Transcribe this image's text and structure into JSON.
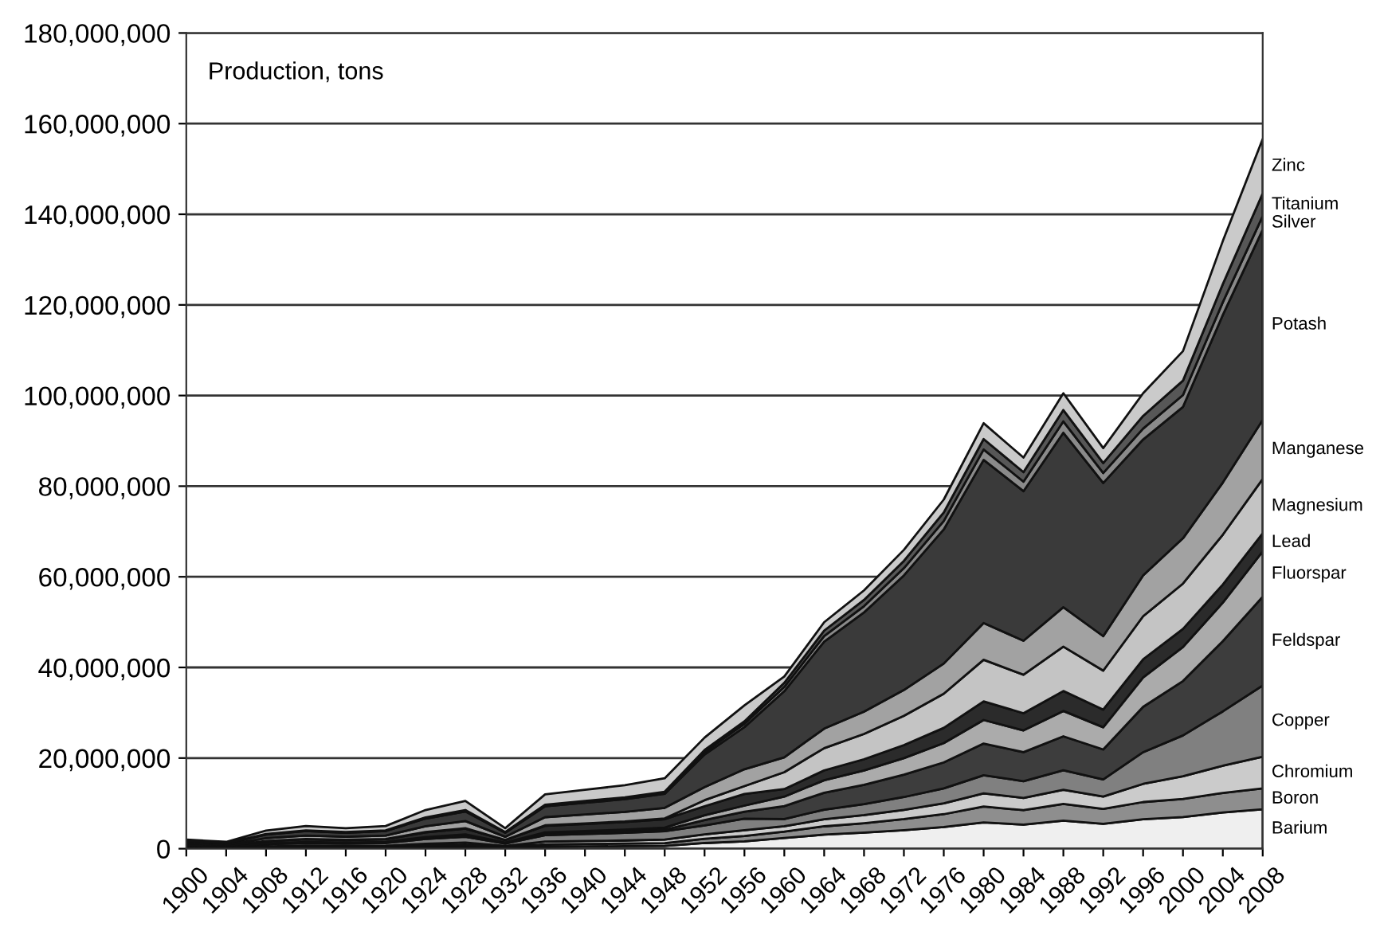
{
  "chart_data": {
    "type": "area",
    "stacked": true,
    "annotations": [
      "Production, tons"
    ],
    "x": [
      1900,
      1904,
      1908,
      1912,
      1916,
      1920,
      1924,
      1928,
      1932,
      1936,
      1940,
      1944,
      1948,
      1952,
      1956,
      1960,
      1964,
      1968,
      1972,
      1976,
      1980,
      1984,
      1988,
      1992,
      1996,
      2000,
      2004,
      2008
    ],
    "series": [
      {
        "name": "Barium",
        "color": "#efefef",
        "values": [
          80000,
          60000,
          160000,
          200000,
          180000,
          200000,
          340000,
          420000,
          180000,
          480000,
          520000,
          560000,
          620000,
          1250000,
          1610000,
          2360000,
          3100000,
          3540000,
          4100000,
          4780000,
          5800000,
          5300000,
          6200000,
          5500000,
          6500000,
          7000000,
          8000000,
          8700000
        ]
      },
      {
        "name": "Boron",
        "color": "#8e8e8e",
        "values": [
          80000,
          60000,
          160000,
          200000,
          180000,
          200000,
          340000,
          420000,
          180000,
          480000,
          520000,
          560000,
          620000,
          940000,
          1210000,
          1400000,
          1840000,
          2100000,
          2430000,
          2840000,
          3500000,
          3200000,
          3700000,
          3300000,
          3800000,
          4000000,
          4300000,
          4600000
        ]
      },
      {
        "name": "Chromium",
        "color": "#cbcbcb",
        "values": [
          100000,
          80000,
          200000,
          250000,
          230000,
          250000,
          430000,
          530000,
          230000,
          600000,
          650000,
          700000,
          780000,
          980000,
          1270000,
          1180000,
          1550000,
          1770000,
          2050000,
          2390000,
          2900000,
          2700000,
          3100000,
          2700000,
          4000000,
          5000000,
          6000000,
          7000000
        ]
      },
      {
        "name": "Copper",
        "color": "#808080",
        "values": [
          240000,
          180000,
          480000,
          600000,
          540000,
          600000,
          1020000,
          1260000,
          540000,
          1440000,
          1560000,
          1680000,
          1860000,
          1970000,
          2540000,
          1620000,
          2130000,
          2430000,
          2820000,
          3290000,
          4000000,
          3700000,
          4300000,
          3800000,
          7000000,
          9000000,
          12000000,
          15700000
        ]
      },
      {
        "name": "Feldspar",
        "color": "#3d3d3d",
        "values": [
          40000,
          30000,
          80000,
          100000,
          90000,
          100000,
          170000,
          210000,
          90000,
          240000,
          260000,
          280000,
          310000,
          1180000,
          1520000,
          2840000,
          3730000,
          4260000,
          4930000,
          5750000,
          7000000,
          6400000,
          7500000,
          6600000,
          10000000,
          12000000,
          15500000,
          19600000
        ]
      },
      {
        "name": "Fluorspar",
        "color": "#ababab",
        "values": [
          60000,
          50000,
          120000,
          150000,
          140000,
          150000,
          260000,
          320000,
          140000,
          360000,
          390000,
          420000,
          470000,
          1060000,
          1360000,
          2100000,
          2760000,
          3150000,
          3650000,
          4260000,
          5200000,
          4800000,
          5600000,
          4900000,
          6500000,
          7500000,
          8500000,
          10000000
        ]
      },
      {
        "name": "Lead",
        "color": "#2b2b2b",
        "values": [
          240000,
          180000,
          480000,
          600000,
          540000,
          600000,
          1020000,
          1260000,
          540000,
          1440000,
          1560000,
          1680000,
          1860000,
          1990000,
          2570000,
          1660000,
          2180000,
          2490000,
          2880000,
          3360000,
          4100000,
          3800000,
          4400000,
          3900000,
          4000000,
          4000000,
          4000000,
          4000000
        ]
      },
      {
        "name": "Magnesium",
        "color": "#c4c4c4",
        "values": [
          20000,
          20000,
          40000,
          50000,
          50000,
          50000,
          90000,
          110000,
          50000,
          120000,
          130000,
          140000,
          160000,
          1340000,
          1740000,
          3730000,
          4900000,
          5590000,
          6460000,
          7540000,
          9200000,
          8500000,
          9800000,
          8600000,
          9500000,
          10000000,
          11000000,
          12000000
        ]
      },
      {
        "name": "Manganese",
        "color": "#a2a2a2",
        "values": [
          300000,
          220000,
          600000,
          750000,
          680000,
          750000,
          1280000,
          1580000,
          680000,
          1800000,
          1950000,
          2100000,
          2330000,
          2880000,
          3720000,
          3280000,
          4320000,
          4920000,
          5700000,
          6650000,
          8100000,
          7500000,
          8700000,
          7600000,
          9000000,
          10000000,
          11500000,
          13000000
        ]
      },
      {
        "name": "Potash",
        "color": "#3a3a3a",
        "values": [
          400000,
          300000,
          800000,
          1000000,
          900000,
          1000000,
          1700000,
          2100000,
          900000,
          2400000,
          2600000,
          2800000,
          3100000,
          7200000,
          9300000,
          14600000,
          19200000,
          21900000,
          25300000,
          29600000,
          36000000,
          33000000,
          38500000,
          33800000,
          30000000,
          29000000,
          37000000,
          42000000
        ]
      },
      {
        "name": "Silver",
        "color": "#8a8a8a",
        "values": [
          40000,
          30000,
          80000,
          100000,
          90000,
          100000,
          170000,
          210000,
          90000,
          240000,
          260000,
          280000,
          310000,
          550000,
          710000,
          920000,
          1210000,
          1380000,
          1600000,
          1870000,
          2300000,
          2100000,
          2500000,
          2200000,
          2400000,
          2600000,
          2800000,
          3000000
        ]
      },
      {
        "name": "Titanium",
        "color": "#575757",
        "values": [
          20000,
          20000,
          40000,
          50000,
          50000,
          50000,
          90000,
          110000,
          50000,
          120000,
          130000,
          140000,
          160000,
          430000,
          560000,
          920000,
          1210000,
          1380000,
          1600000,
          1870000,
          2300000,
          2100000,
          2500000,
          2200000,
          2800000,
          3200000,
          4000000,
          5000000
        ]
      },
      {
        "name": "Zinc",
        "color": "#cacaca",
        "values": [
          380000,
          280000,
          760000,
          950000,
          860000,
          950000,
          1620000,
          2000000,
          860000,
          2280000,
          2470000,
          2660000,
          2950000,
          2740000,
          3530000,
          1400000,
          1840000,
          2100000,
          2430000,
          2840000,
          3500000,
          3200000,
          3700000,
          3300000,
          5000000,
          6500000,
          9500000,
          12000000
        ]
      }
    ],
    "xlim": [
      1900,
      2008
    ],
    "xticks": [
      1900,
      1904,
      1908,
      1912,
      1916,
      1920,
      1924,
      1928,
      1932,
      1936,
      1940,
      1944,
      1948,
      1952,
      1956,
      1960,
      1964,
      1968,
      1972,
      1976,
      1980,
      1984,
      1988,
      1992,
      1996,
      2000,
      2004,
      2008
    ],
    "ylim": [
      0,
      180000000
    ],
    "yticks": [
      {
        "value": 0,
        "label": "0"
      },
      {
        "value": 20000000,
        "label": "20,000,000"
      },
      {
        "value": 40000000,
        "label": "40,000,000"
      },
      {
        "value": 60000000,
        "label": "60,000,000"
      },
      {
        "value": 80000000,
        "label": "80,000,000"
      },
      {
        "value": 100000000,
        "label": "100,000,000"
      },
      {
        "value": 120000000,
        "label": "120,000,000"
      },
      {
        "value": 140000000,
        "label": "140,000,000"
      },
      {
        "value": 160000000,
        "label": "160,000,000"
      },
      {
        "value": 180000000,
        "label": "180,000,000"
      }
    ],
    "grid": "y",
    "legend": false
  }
}
